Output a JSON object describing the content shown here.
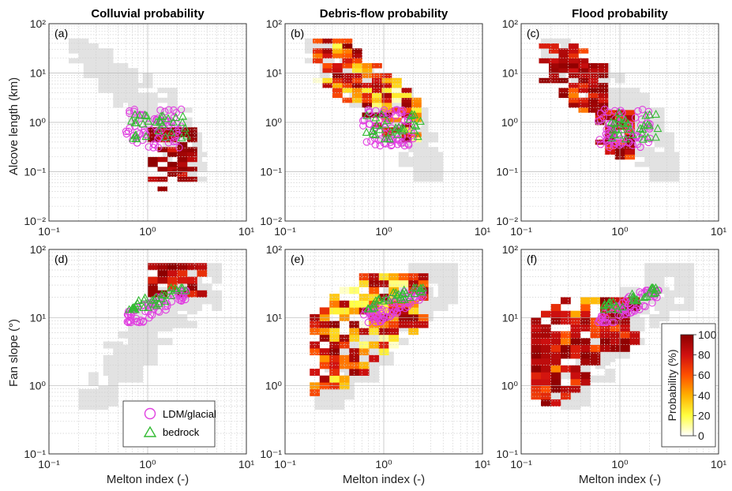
{
  "figure": {
    "column_titles": [
      "Colluvial probability",
      "Debris-flow probability",
      "Flood probability"
    ],
    "panel_labels": [
      "(a)",
      "(b)",
      "(c)",
      "(d)",
      "(e)",
      "(f)"
    ],
    "top_ylabel": "Alcove length (km)",
    "bottom_ylabel": "Fan slope (°)",
    "xlabel": "Melton index (-)",
    "legend": {
      "series1": "LDM/glacial",
      "series2": "bedrock"
    },
    "colorbar": {
      "label": "Probability (%)",
      "ticks": [
        "0",
        "20",
        "40",
        "60",
        "80",
        "100"
      ]
    },
    "colors": {
      "ldm": "#e040e0",
      "bedrock": "#33bb33",
      "background_bins": "#e2e2e2",
      "colormap": [
        "#ffffff",
        "#ffff40",
        "#ffb000",
        "#ff5000",
        "#d01010",
        "#8b0000"
      ]
    }
  },
  "chart_data": [
    {
      "type": "heatmap",
      "panel": "a",
      "title": "Colluvial probability",
      "xlabel": "",
      "ylabel": "Alcove length (km)",
      "xscale": "log",
      "yscale": "log",
      "xlim": [
        0.1,
        10
      ],
      "ylim": [
        0.01,
        100
      ],
      "grid": true,
      "xticks": [
        "10⁻¹",
        "10⁰",
        "10¹"
      ],
      "yticks": [
        "10⁻²",
        "10⁻¹",
        "10⁰",
        "10¹",
        "10²"
      ],
      "colored_region": {
        "x_range": [
          0.9,
          3.5
        ],
        "y_range": [
          0.04,
          0.8
        ],
        "prob_range": [
          70,
          100
        ]
      },
      "series": [
        {
          "name": "LDM/glacial",
          "marker": "circle",
          "x_range": [
            0.6,
            2.2
          ],
          "y_range": [
            0.3,
            1.9
          ]
        },
        {
          "name": "bedrock",
          "marker": "triangle",
          "x_range": [
            0.65,
            2.5
          ],
          "y_range": [
            0.45,
            1.6
          ]
        }
      ]
    },
    {
      "type": "heatmap",
      "panel": "b",
      "title": "Debris-flow probability",
      "xlabel": "",
      "ylabel": "",
      "xscale": "log",
      "yscale": "log",
      "xlim": [
        0.1,
        10
      ],
      "ylim": [
        0.01,
        100
      ],
      "grid": true,
      "xticks": [
        "10⁻¹",
        "10⁰",
        "10¹"
      ],
      "yticks": [
        "10⁻²",
        "10⁻¹",
        "10⁰",
        "10¹",
        "10²"
      ],
      "colored_region": {
        "x_range": [
          0.17,
          2.5
        ],
        "y_range": [
          0.1,
          50
        ],
        "prob_range": [
          0,
          100
        ]
      },
      "series": [
        {
          "name": "LDM/glacial",
          "marker": "circle",
          "x_range": [
            0.6,
            2.2
          ],
          "y_range": [
            0.3,
            1.9
          ]
        },
        {
          "name": "bedrock",
          "marker": "triangle",
          "x_range": [
            0.65,
            2.5
          ],
          "y_range": [
            0.45,
            1.6
          ]
        }
      ]
    },
    {
      "type": "heatmap",
      "panel": "c",
      "title": "Flood probability",
      "xlabel": "",
      "ylabel": "",
      "xscale": "log",
      "yscale": "log",
      "xlim": [
        0.1,
        10
      ],
      "ylim": [
        0.01,
        100
      ],
      "grid": true,
      "xticks": [
        "10⁻¹",
        "10⁰",
        "10¹"
      ],
      "yticks": [
        "10⁻²",
        "10⁻¹",
        "10⁰",
        "10¹",
        "10²"
      ],
      "colored_region": {
        "x_range": [
          0.15,
          1.3
        ],
        "y_range": [
          0.15,
          40
        ],
        "prob_range": [
          40,
          100
        ]
      },
      "series": [
        {
          "name": "LDM/glacial",
          "marker": "circle",
          "x_range": [
            0.6,
            2.2
          ],
          "y_range": [
            0.3,
            1.9
          ]
        },
        {
          "name": "bedrock",
          "marker": "triangle",
          "x_range": [
            0.65,
            2.5
          ],
          "y_range": [
            0.45,
            1.6
          ]
        }
      ]
    },
    {
      "type": "heatmap",
      "panel": "d",
      "title": "",
      "xlabel": "Melton index (-)",
      "ylabel": "Fan slope (°)",
      "xscale": "log",
      "yscale": "log",
      "xlim": [
        0.1,
        10
      ],
      "ylim": [
        0.1,
        100
      ],
      "grid": true,
      "xticks": [
        "10⁻¹",
        "10⁰",
        "10¹"
      ],
      "yticks": [
        "10⁻¹",
        "10⁰",
        "10¹",
        "10²"
      ],
      "colored_region": {
        "x_range": [
          1.0,
          3.5
        ],
        "y_range": [
          20,
          55
        ],
        "prob_range": [
          60,
          100
        ]
      },
      "series": [
        {
          "name": "LDM/glacial",
          "marker": "circle",
          "x_range": [
            0.6,
            2.5
          ],
          "y_range": [
            8.5,
            25
          ]
        },
        {
          "name": "bedrock",
          "marker": "triangle",
          "x_range": [
            0.65,
            2.5
          ],
          "y_range": [
            13,
            27
          ]
        }
      ]
    },
    {
      "type": "heatmap",
      "panel": "e",
      "title": "",
      "xlabel": "Melton index (-)",
      "ylabel": "",
      "xscale": "log",
      "yscale": "log",
      "xlim": [
        0.1,
        10
      ],
      "ylim": [
        0.1,
        100
      ],
      "grid": true,
      "xticks": [
        "10⁻¹",
        "10⁰",
        "10¹"
      ],
      "yticks": [
        "10⁻¹",
        "10⁰",
        "10¹",
        "10²"
      ],
      "colored_region": {
        "x_range": [
          0.2,
          3.0
        ],
        "y_range": [
          0.7,
          40
        ],
        "prob_range": [
          0,
          100
        ]
      },
      "series": [
        {
          "name": "LDM/glacial",
          "marker": "circle",
          "x_range": [
            0.6,
            2.5
          ],
          "y_range": [
            8.5,
            25
          ]
        },
        {
          "name": "bedrock",
          "marker": "triangle",
          "x_range": [
            0.65,
            2.5
          ],
          "y_range": [
            13,
            27
          ]
        }
      ]
    },
    {
      "type": "heatmap",
      "panel": "f",
      "title": "",
      "xlabel": "Melton index (-)",
      "ylabel": "",
      "xscale": "log",
      "yscale": "log",
      "xlim": [
        0.1,
        10
      ],
      "ylim": [
        0.1,
        100
      ],
      "grid": true,
      "xticks": [
        "10⁻¹",
        "10⁰",
        "10¹"
      ],
      "yticks": [
        "10⁻¹",
        "10⁰",
        "10¹",
        "10²"
      ],
      "colored_region": {
        "x_range": [
          0.1,
          1.5
        ],
        "y_range": [
          0.5,
          20
        ],
        "prob_range": [
          30,
          100
        ]
      },
      "series": [
        {
          "name": "LDM/glacial",
          "marker": "circle",
          "x_range": [
            0.6,
            2.5
          ],
          "y_range": [
            8.5,
            25
          ]
        },
        {
          "name": "bedrock",
          "marker": "triangle",
          "x_range": [
            0.65,
            2.5
          ],
          "y_range": [
            13,
            27
          ]
        }
      ]
    }
  ]
}
